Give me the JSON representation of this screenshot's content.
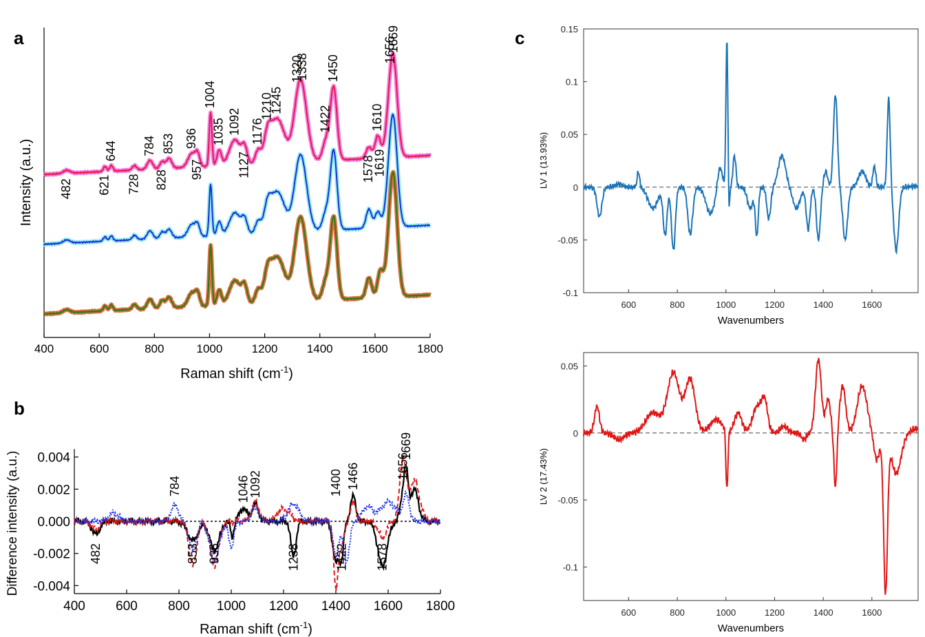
{
  "panel_letters": {
    "a": "a",
    "b": "b",
    "c": "c"
  },
  "chart_data": [
    {
      "panel": "a",
      "type": "line",
      "xlabel_main": "Raman shift (cm",
      "xlabel_sup": "-1",
      "xlabel_close": ")",
      "ylabel": "Intensity (a.u.)",
      "xlim": [
        400,
        1800
      ],
      "xticks": [
        "400",
        "600",
        "800",
        "1000",
        "1200",
        "1400",
        "1600",
        "1800"
      ],
      "series": [
        {
          "color": "#e8194a",
          "band_color": "#ee6fe0",
          "offset": 2.2,
          "peaks": [
            [
              482,
              0.05,
              12
            ],
            [
              621,
              0.08,
              6
            ],
            [
              644,
              0.09,
              6
            ],
            [
              728,
              0.07,
              8
            ],
            [
              784,
              0.14,
              10
            ],
            [
              828,
              0.11,
              8
            ],
            [
              853,
              0.16,
              10
            ],
            [
              936,
              0.22,
              14
            ],
            [
              957,
              0.18,
              8
            ],
            [
              1004,
              0.85,
              5
            ],
            [
              1035,
              0.25,
              8
            ],
            [
              1092,
              0.4,
              20
            ],
            [
              1127,
              0.25,
              10
            ],
            [
              1176,
              0.2,
              10
            ],
            [
              1210,
              0.3,
              12
            ],
            [
              1245,
              0.7,
              28
            ],
            [
              1320,
              0.6,
              18
            ],
            [
              1338,
              0.85,
              20
            ],
            [
              1422,
              0.3,
              12
            ],
            [
              1450,
              1.15,
              12
            ],
            [
              1578,
              0.18,
              10
            ],
            [
              1610,
              0.35,
              10
            ],
            [
              1656,
              0.7,
              15
            ],
            [
              1669,
              1.1,
              14
            ]
          ]
        },
        {
          "color": "#1a2fd6",
          "band_color": "#7fe8f0",
          "offset": 1.1,
          "peaks": [
            [
              482,
              0.05,
              12
            ],
            [
              621,
              0.07,
              6
            ],
            [
              644,
              0.08,
              6
            ],
            [
              728,
              0.07,
              8
            ],
            [
              784,
              0.13,
              10
            ],
            [
              828,
              0.1,
              8
            ],
            [
              853,
              0.14,
              10
            ],
            [
              936,
              0.2,
              14
            ],
            [
              957,
              0.16,
              8
            ],
            [
              1004,
              0.82,
              5
            ],
            [
              1035,
              0.22,
              8
            ],
            [
              1092,
              0.35,
              20
            ],
            [
              1127,
              0.22,
              10
            ],
            [
              1176,
              0.18,
              10
            ],
            [
              1210,
              0.28,
              12
            ],
            [
              1245,
              0.65,
              28
            ],
            [
              1320,
              0.55,
              18
            ],
            [
              1338,
              0.8,
              20
            ],
            [
              1422,
              0.28,
              12
            ],
            [
              1450,
              1.25,
              12
            ],
            [
              1578,
              0.3,
              10
            ],
            [
              1610,
              0.25,
              10
            ],
            [
              1656,
              0.75,
              15
            ],
            [
              1669,
              1.2,
              14
            ]
          ]
        },
        {
          "color": "#2b7a16",
          "band_color": "#d8551f",
          "offset": 0.0,
          "peaks": [
            [
              482,
              0.05,
              12
            ],
            [
              621,
              0.08,
              6
            ],
            [
              644,
              0.09,
              6
            ],
            [
              728,
              0.08,
              8
            ],
            [
              784,
              0.15,
              10
            ],
            [
              828,
              0.12,
              8
            ],
            [
              853,
              0.17,
              10
            ],
            [
              936,
              0.22,
              14
            ],
            [
              957,
              0.18,
              8
            ],
            [
              1004,
              0.95,
              5
            ],
            [
              1035,
              0.24,
              8
            ],
            [
              1092,
              0.38,
              20
            ],
            [
              1127,
              0.26,
              10
            ],
            [
              1176,
              0.2,
              10
            ],
            [
              1210,
              0.3,
              12
            ],
            [
              1245,
              0.72,
              28
            ],
            [
              1320,
              0.6,
              18
            ],
            [
              1338,
              0.88,
              20
            ],
            [
              1422,
              0.3,
              12
            ],
            [
              1450,
              1.3,
              12
            ],
            [
              1578,
              0.32,
              10
            ],
            [
              1619,
              0.4,
              10
            ],
            [
              1656,
              0.8,
              15
            ],
            [
              1669,
              1.35,
              14
            ]
          ]
        }
      ],
      "annotations_above": [
        {
          "x": 1004,
          "text": "1004"
        },
        {
          "x": 1035,
          "text": "1035"
        },
        {
          "x": 1092,
          "text": "1092"
        },
        {
          "x": 1176,
          "text": "1176"
        },
        {
          "x": 1210,
          "text": "1210"
        },
        {
          "x": 1245,
          "text": "1245"
        },
        {
          "x": 1338,
          "text": "1338"
        },
        {
          "x": 1450,
          "text": "1450"
        },
        {
          "x": 1656,
          "text": "1656"
        },
        {
          "x": 1669,
          "text": "1669"
        },
        {
          "x": 1320,
          "text": "1320"
        },
        {
          "x": 1422,
          "text": "1422"
        },
        {
          "x": 1610,
          "text": "1610"
        },
        {
          "x": 936,
          "text": "936"
        },
        {
          "x": 853,
          "text": "853"
        },
        {
          "x": 784,
          "text": "784"
        },
        {
          "x": 644,
          "text": "644"
        }
      ],
      "annotations_below": [
        {
          "x": 482,
          "text": "482"
        },
        {
          "x": 621,
          "text": "621"
        },
        {
          "x": 728,
          "text": "728"
        },
        {
          "x": 828,
          "text": "828"
        },
        {
          "x": 957,
          "text": "957"
        },
        {
          "x": 1127,
          "text": "1127"
        },
        {
          "x": 1578,
          "text": "1578"
        },
        {
          "x": 1619,
          "text": "1619"
        }
      ]
    },
    {
      "panel": "b",
      "type": "line",
      "xlabel_main": "Raman shift (cm",
      "xlabel_sup": "-1",
      "xlabel_close": ")",
      "ylabel": "Difference intensity (a.u.)",
      "xlim": [
        400,
        1800
      ],
      "ylim": [
        -0.0045,
        0.0045
      ],
      "xticks": [
        "400",
        "600",
        "800",
        "1000",
        "1200",
        "1400",
        "1600",
        "1800"
      ],
      "yticks": [
        "0.004",
        "0.002",
        "0.000",
        "-0.002",
        "-0.004"
      ],
      "series": [
        {
          "style": "solid",
          "color": "#000000",
          "peaks": [
            [
              482,
              -0.0008,
              15
            ],
            [
              853,
              -0.0012,
              20
            ],
            [
              936,
              -0.0018,
              18
            ],
            [
              1004,
              -0.001,
              6
            ],
            [
              1046,
              0.0008,
              15
            ],
            [
              1092,
              0.0011,
              12
            ],
            [
              1238,
              -0.0022,
              10
            ],
            [
              1400,
              -0.0025,
              12
            ],
            [
              1422,
              -0.002,
              8
            ],
            [
              1466,
              0.0016,
              10
            ],
            [
              1578,
              -0.0028,
              18
            ],
            [
              1656,
              0.0015,
              10
            ],
            [
              1669,
              0.0026,
              8
            ],
            [
              1700,
              0.002,
              15
            ]
          ]
        },
        {
          "style": "dash",
          "color": "#e01515",
          "peaks": [
            [
              482,
              -0.0005,
              15
            ],
            [
              853,
              -0.0028,
              14
            ],
            [
              936,
              -0.0028,
              16
            ],
            [
              1092,
              0.0012,
              14
            ],
            [
              1200,
              0.0008,
              25
            ],
            [
              1400,
              -0.0042,
              8
            ],
            [
              1422,
              -0.0015,
              10
            ],
            [
              1466,
              0.0012,
              10
            ],
            [
              1578,
              -0.001,
              15
            ],
            [
              1656,
              0.0038,
              12
            ],
            [
              1700,
              0.0025,
              20
            ]
          ]
        },
        {
          "style": "dot",
          "color": "#1f2fe8",
          "peaks": [
            [
              550,
              0.0005,
              20
            ],
            [
              784,
              0.001,
              14
            ],
            [
              853,
              -0.0018,
              14
            ],
            [
              936,
              -0.0025,
              18
            ],
            [
              1000,
              -0.0016,
              10
            ],
            [
              1092,
              0.0008,
              14
            ],
            [
              1238,
              0.0011,
              20
            ],
            [
              1400,
              -0.0022,
              10
            ],
            [
              1440,
              -0.0025,
              12
            ],
            [
              1520,
              0.0009,
              20
            ],
            [
              1600,
              0.0012,
              30
            ],
            [
              1669,
              0.0016,
              12
            ]
          ]
        }
      ],
      "annotations_above": [
        {
          "x": 784,
          "text": "784"
        },
        {
          "x": 1046,
          "text": "1046"
        },
        {
          "x": 1092,
          "text": "1092"
        },
        {
          "x": 1400,
          "text": "1400"
        },
        {
          "x": 1466,
          "text": "1466"
        },
        {
          "x": 1656,
          "text": "1656"
        },
        {
          "x": 1669,
          "text": "1669"
        }
      ],
      "annotations_below": [
        {
          "x": 482,
          "text": "482"
        },
        {
          "x": 853,
          "text": "853"
        },
        {
          "x": 936,
          "text": "936"
        },
        {
          "x": 1238,
          "text": "1238"
        },
        {
          "x": 1422,
          "text": "1422"
        },
        {
          "x": 1578,
          "text": "1578"
        }
      ]
    },
    {
      "panel": "c-top",
      "type": "line",
      "xlabel": "Wavenumbers",
      "ylabel": "LV 1 (13.93%)",
      "xlim": [
        415,
        1790
      ],
      "ylim": [
        -0.1,
        0.15
      ],
      "xticks": [
        "600",
        "800",
        "1000",
        "1200",
        "1400",
        "1600"
      ],
      "yticks": [
        "0.15",
        "0.1",
        "0.05",
        "0",
        "-0.05",
        "-0.1"
      ],
      "color": "#1a73b8",
      "baseline": 0,
      "peaks": [
        [
          480,
          -0.028,
          10
        ],
        [
          560,
          0.003,
          15
        ],
        [
          640,
          0.015,
          5
        ],
        [
          700,
          -0.02,
          20
        ],
        [
          750,
          -0.045,
          8
        ],
        [
          784,
          -0.06,
          8
        ],
        [
          853,
          -0.045,
          10
        ],
        [
          936,
          -0.025,
          18
        ],
        [
          975,
          0.02,
          10
        ],
        [
          1004,
          0.142,
          4
        ],
        [
          1012,
          -0.03,
          3
        ],
        [
          1035,
          0.03,
          6
        ],
        [
          1100,
          -0.02,
          12
        ],
        [
          1127,
          -0.045,
          6
        ],
        [
          1176,
          -0.03,
          8
        ],
        [
          1230,
          0.03,
          15
        ],
        [
          1290,
          -0.02,
          15
        ],
        [
          1338,
          -0.04,
          8
        ],
        [
          1380,
          -0.05,
          8
        ],
        [
          1410,
          0.015,
          8
        ],
        [
          1450,
          0.088,
          8
        ],
        [
          1490,
          -0.05,
          10
        ],
        [
          1560,
          0.015,
          15
        ],
        [
          1610,
          0.02,
          6
        ],
        [
          1669,
          0.085,
          6
        ],
        [
          1700,
          -0.06,
          10
        ],
        [
          1780,
          0.001,
          20
        ]
      ]
    },
    {
      "panel": "c-bottom",
      "type": "line",
      "xlabel": "Wavenumbers",
      "ylabel": "LV 2 (17.43%)",
      "xlim": [
        415,
        1790
      ],
      "ylim": [
        -0.125,
        0.06
      ],
      "xticks": [
        "600",
        "800",
        "1000",
        "1200",
        "1400",
        "1600"
      ],
      "yticks": [
        "0.05",
        "0",
        "-0.05",
        "-0.1"
      ],
      "color": "#e01515",
      "baseline": 0,
      "peaks": [
        [
          470,
          0.02,
          10
        ],
        [
          560,
          -0.005,
          20
        ],
        [
          700,
          0.015,
          30
        ],
        [
          784,
          0.045,
          25
        ],
        [
          853,
          0.04,
          20
        ],
        [
          960,
          0.01,
          25
        ],
        [
          1004,
          -0.045,
          4
        ],
        [
          1050,
          0.015,
          15
        ],
        [
          1130,
          0.02,
          20
        ],
        [
          1160,
          0.02,
          12
        ],
        [
          1238,
          0.005,
          15
        ],
        [
          1320,
          -0.005,
          10
        ],
        [
          1380,
          0.055,
          12
        ],
        [
          1420,
          0.025,
          10
        ],
        [
          1450,
          -0.042,
          6
        ],
        [
          1480,
          0.035,
          12
        ],
        [
          1560,
          0.035,
          20
        ],
        [
          1620,
          -0.02,
          12
        ],
        [
          1656,
          -0.118,
          8
        ],
        [
          1700,
          -0.03,
          20
        ],
        [
          1780,
          0.003,
          20
        ]
      ]
    }
  ]
}
